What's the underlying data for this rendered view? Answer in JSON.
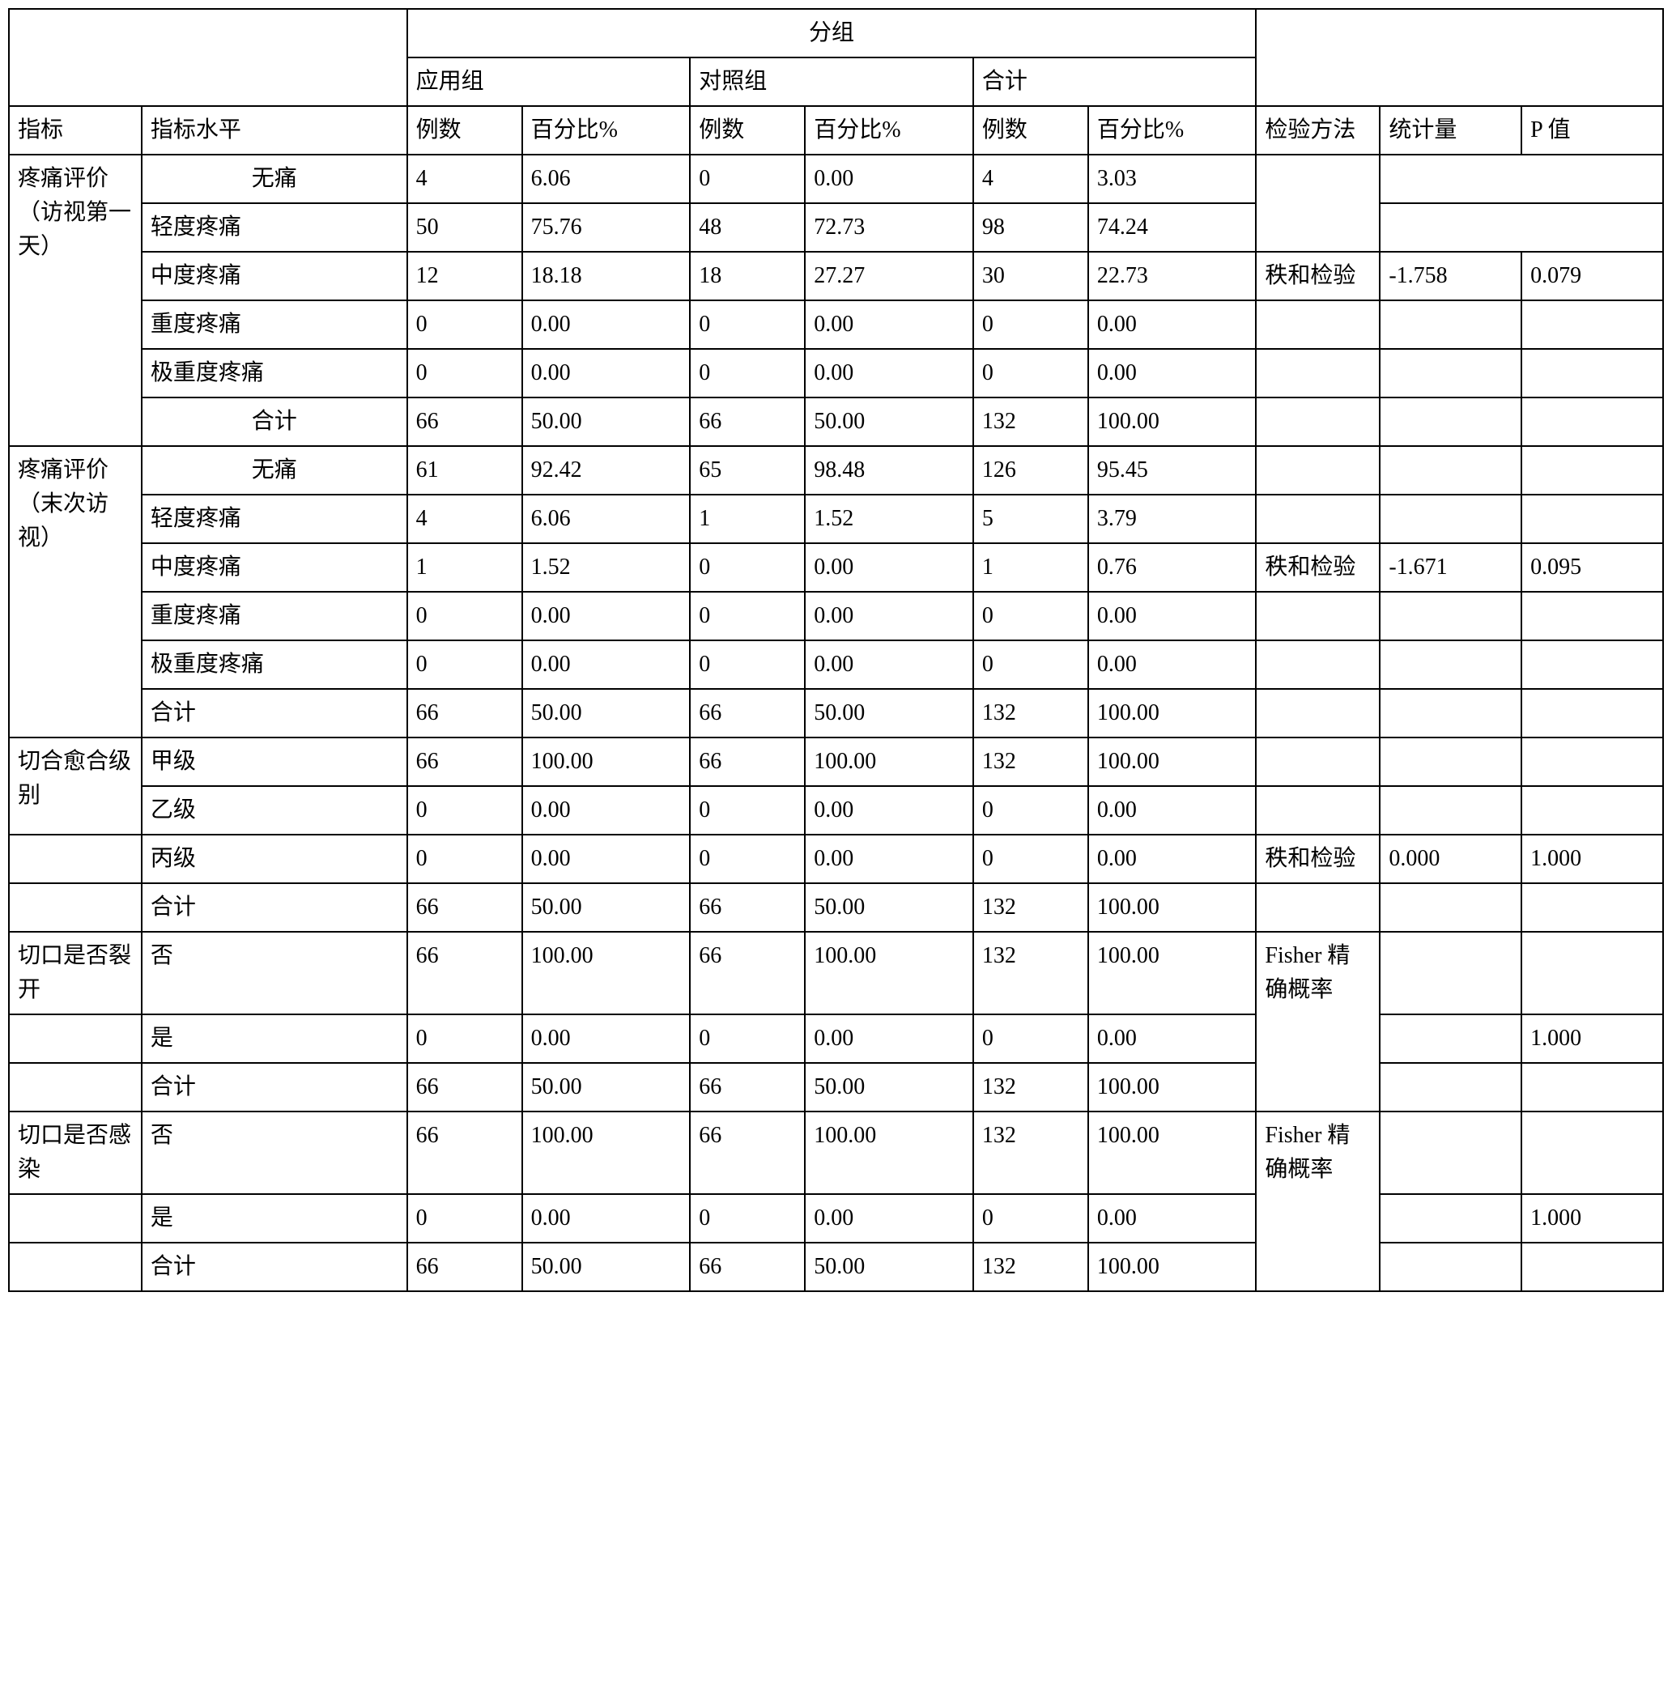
{
  "header": {
    "group": "分组",
    "app_group": "应用组",
    "ctrl_group": "对照组",
    "total_group": "合计",
    "indicator": "指标",
    "indicator_level": "指标水平",
    "count": "例数",
    "percent": "百分比%",
    "test_method": "检验方法",
    "statistic": "统计量",
    "p_value": "P 值"
  },
  "sections": [
    {
      "indicator": "疼痛评价（访视第一天）",
      "rows": [
        {
          "level": "无痛",
          "level_center": true,
          "app_n": "4",
          "app_p": "6.06",
          "ctrl_n": "0",
          "ctrl_p": "0.00",
          "tot_n": "4",
          "tot_p": "3.03"
        },
        {
          "level": "轻度疼痛",
          "app_n": "50",
          "app_p": "75.76",
          "ctrl_n": "48",
          "ctrl_p": "72.73",
          "tot_n": "98",
          "tot_p": "74.24"
        },
        {
          "level": "中度疼痛",
          "app_n": "12",
          "app_p": "18.18",
          "ctrl_n": "18",
          "ctrl_p": "27.27",
          "tot_n": "30",
          "tot_p": "22.73"
        },
        {
          "level": "重度疼痛",
          "app_n": "0",
          "app_p": "0.00",
          "ctrl_n": "0",
          "ctrl_p": "0.00",
          "tot_n": "0",
          "tot_p": "0.00"
        },
        {
          "level": "极重度疼痛",
          "app_n": "0",
          "app_p": "0.00",
          "ctrl_n": "0",
          "ctrl_p": "0.00",
          "tot_n": "0",
          "tot_p": "0.00"
        },
        {
          "level": "合计",
          "level_center": true,
          "app_n": "66",
          "app_p": "50.00",
          "ctrl_n": "66",
          "ctrl_p": "50.00",
          "tot_n": "132",
          "tot_p": "100.00"
        }
      ],
      "method_row_index": 2,
      "method_span": 1,
      "method": "秩和检验",
      "stat": "-1.758",
      "pval": "0.079",
      "split_first_two_right_cells": true
    },
    {
      "indicator": "疼痛评价（末次访视）",
      "rows": [
        {
          "level": "无痛",
          "level_center": true,
          "app_n": "61",
          "app_p": "92.42",
          "ctrl_n": "65",
          "ctrl_p": "98.48",
          "tot_n": "126",
          "tot_p": "95.45"
        },
        {
          "level": "轻度疼痛",
          "app_n": "4",
          "app_p": "6.06",
          "ctrl_n": "1",
          "ctrl_p": "1.52",
          "tot_n": "5",
          "tot_p": "3.79"
        },
        {
          "level": "中度疼痛",
          "app_n": "1",
          "app_p": "1.52",
          "ctrl_n": "0",
          "ctrl_p": "0.00",
          "tot_n": "1",
          "tot_p": "0.76"
        },
        {
          "level": "重度疼痛",
          "app_n": "0",
          "app_p": "0.00",
          "ctrl_n": "0",
          "ctrl_p": "0.00",
          "tot_n": "0",
          "tot_p": "0.00"
        },
        {
          "level": "极重度疼痛",
          "app_n": "0",
          "app_p": "0.00",
          "ctrl_n": "0",
          "ctrl_p": "0.00",
          "tot_n": "0",
          "tot_p": "0.00"
        },
        {
          "level": "合计",
          "app_n": "66",
          "app_p": "50.00",
          "ctrl_n": "66",
          "ctrl_p": "50.00",
          "tot_n": "132",
          "tot_p": "100.00"
        }
      ],
      "method_row_index": 2,
      "method_span": 1,
      "method": "秩和检验",
      "stat": "-1.671",
      "pval": "0.095"
    },
    {
      "indicator": "切合愈合级别",
      "indicator_span": 2,
      "rows": [
        {
          "level": "甲级",
          "app_n": "66",
          "app_p": "100.00",
          "ctrl_n": "66",
          "ctrl_p": "100.00",
          "tot_n": "132",
          "tot_p": "100.00"
        },
        {
          "level": "乙级",
          "app_n": "0",
          "app_p": "0.00",
          "ctrl_n": "0",
          "ctrl_p": "0.00",
          "tot_n": "0",
          "tot_p": "0.00"
        },
        {
          "level": "丙级",
          "app_n": "0",
          "app_p": "0.00",
          "ctrl_n": "0",
          "ctrl_p": "0.00",
          "tot_n": "0",
          "tot_p": "0.00"
        },
        {
          "level": "合计",
          "app_n": "66",
          "app_p": "50.00",
          "ctrl_n": "66",
          "ctrl_p": "50.00",
          "tot_n": "132",
          "tot_p": "100.00"
        }
      ],
      "method_row_index": 2,
      "method_span": 1,
      "method": "秩和检验",
      "stat": "0.000",
      "pval": "1.000"
    },
    {
      "indicator": "切口是否裂开",
      "indicator_span": 1,
      "rows": [
        {
          "level": "否",
          "app_n": "66",
          "app_p": "100.00",
          "ctrl_n": "66",
          "ctrl_p": "100.00",
          "tot_n": "132",
          "tot_p": "100.00"
        },
        {
          "level": "是",
          "app_n": "0",
          "app_p": "0.00",
          "ctrl_n": "0",
          "ctrl_p": "0.00",
          "tot_n": "0",
          "tot_p": "0.00"
        },
        {
          "level": "合计",
          "app_n": "66",
          "app_p": "50.00",
          "ctrl_n": "66",
          "ctrl_p": "50.00",
          "tot_n": "132",
          "tot_p": "100.00"
        }
      ],
      "method_row_index": 0,
      "method_span": 3,
      "method": "Fisher 精确概率",
      "stat": "",
      "pval": "1.000",
      "pval_row_index": 1
    },
    {
      "indicator": "切口是否感染",
      "indicator_span": 1,
      "rows": [
        {
          "level": "否",
          "app_n": "66",
          "app_p": "100.00",
          "ctrl_n": "66",
          "ctrl_p": "100.00",
          "tot_n": "132",
          "tot_p": "100.00"
        },
        {
          "level": "是",
          "app_n": "0",
          "app_p": "0.00",
          "ctrl_n": "0",
          "ctrl_p": "0.00",
          "tot_n": "0",
          "tot_p": "0.00"
        },
        {
          "level": "合计",
          "app_n": "66",
          "app_p": "50.00",
          "ctrl_n": "66",
          "ctrl_p": "50.00",
          "tot_n": "132",
          "tot_p": "100.00"
        }
      ],
      "method_row_index": 0,
      "method_span": 3,
      "method": "Fisher 精确概率",
      "stat": "",
      "pval": "1.000",
      "pval_row_index": 1
    }
  ]
}
